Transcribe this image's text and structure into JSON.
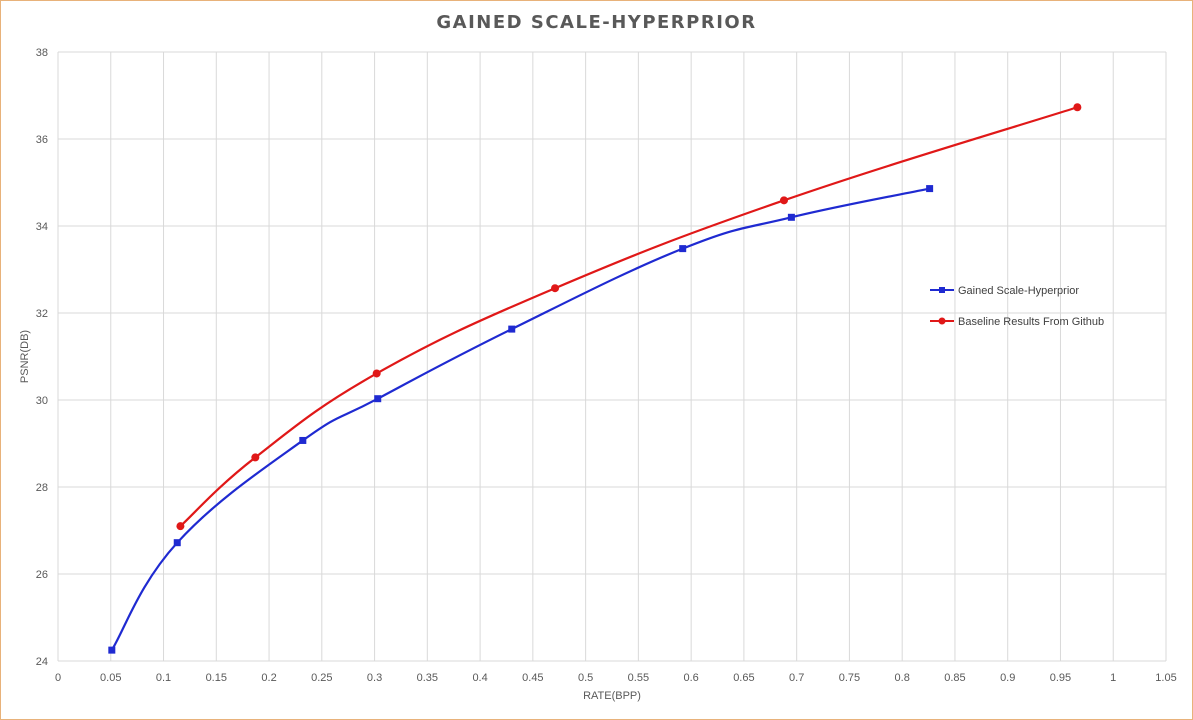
{
  "chart_data": {
    "type": "line",
    "title": "GAINED SCALE-HYPERPRIOR",
    "xlabel": "RATE(BPP)",
    "ylabel": "PSNR(DB)",
    "xlim": [
      0,
      1.05
    ],
    "ylim": [
      24,
      38
    ],
    "x_ticks": [
      0,
      0.05,
      0.1,
      0.15,
      0.2,
      0.25,
      0.3,
      0.35,
      0.4,
      0.45,
      0.5,
      0.55,
      0.6,
      0.65,
      0.7,
      0.75,
      0.8,
      0.85,
      0.9,
      0.95,
      1,
      1.05
    ],
    "x_tick_labels": [
      "0",
      "0.05",
      "0.1",
      "0.15",
      "0.2",
      "0.25",
      "0.3",
      "0.35",
      "0.4",
      "0.45",
      "0.5",
      "0.55",
      "0.6",
      "0.65",
      "0.7",
      "0.75",
      "0.8",
      "0.85",
      "0.9",
      "0.95",
      "1",
      "1.05"
    ],
    "y_ticks": [
      24,
      26,
      28,
      30,
      32,
      34,
      36,
      38
    ],
    "y_tick_labels": [
      "24",
      "26",
      "28",
      "30",
      "32",
      "34",
      "36",
      "38"
    ],
    "grid": true,
    "legend_position": "right",
    "series": [
      {
        "name": "Gained Scale-Hyperprior",
        "color": "#1f2ad1",
        "marker": "square",
        "points": [
          [
            0.051,
            24.25
          ],
          [
            0.113,
            26.72
          ],
          [
            0.232,
            29.07
          ],
          [
            0.303,
            30.03
          ],
          [
            0.43,
            31.63
          ],
          [
            0.592,
            33.48
          ],
          [
            0.695,
            34.2
          ],
          [
            0.826,
            34.86
          ]
        ]
      },
      {
        "name": "Baseline Results From Github",
        "color": "#e01818",
        "marker": "circle",
        "points": [
          [
            0.116,
            27.1
          ],
          [
            0.187,
            28.68
          ],
          [
            0.302,
            30.61
          ],
          [
            0.471,
            32.57
          ],
          [
            0.688,
            34.59
          ],
          [
            0.966,
            36.73
          ]
        ]
      }
    ]
  }
}
